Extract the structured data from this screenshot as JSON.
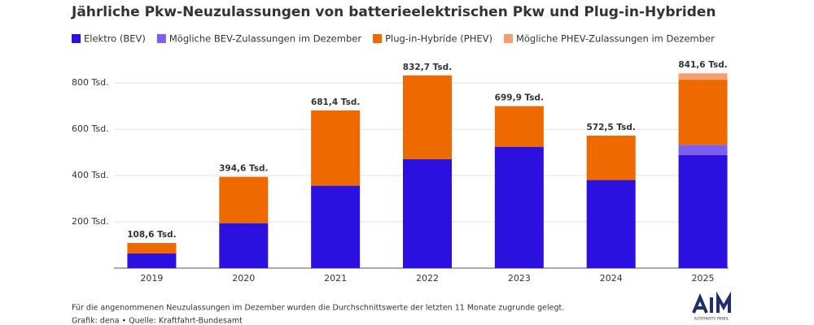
{
  "chart_data": {
    "type": "stacked_bar",
    "title": "Jährliche Pkw-Neuzulassungen von batterieelektrischen Pkw und Plug-in-Hybriden",
    "categories": [
      "2019",
      "2020",
      "2021",
      "2022",
      "2023",
      "2024",
      "2025"
    ],
    "series": [
      {
        "name": "Elektro (BEV)",
        "color": "#2b10e0",
        "values": [
          63.3,
          194.2,
          355.9,
          470.6,
          524.2,
          380.6,
          488
        ]
      },
      {
        "name": "Mögliche BEV-Zulassungen im Dezember",
        "color": "#7c5ef2",
        "values": [
          null,
          null,
          null,
          null,
          null,
          null,
          45
        ]
      },
      {
        "name": "Plug-in-Hybride (PHEV)",
        "color": "#ee6a00",
        "values": [
          45.3,
          200.4,
          325.5,
          362.1,
          175.7,
          191.9,
          281
        ]
      },
      {
        "name": "Mögliche PHEV-Zulassungen im Dezember",
        "color": "#f4a06e",
        "values": [
          null,
          null,
          null,
          null,
          null,
          null,
          27.6
        ]
      }
    ],
    "totals": {
      "values": [
        108.6,
        394.6,
        681.4,
        832.7,
        699.9,
        572.5,
        841.6
      ],
      "value_labels": [
        "108,6 Tsd.",
        "394,6 Tsd.",
        "681,4 Tsd.",
        "832,7 Tsd.",
        "699,9 Tsd.",
        "572,5 Tsd.",
        "841,6 Tsd."
      ]
    },
    "ylim": [
      0,
      860
    ],
    "yticks": [
      {
        "value": 200,
        "label": "200 Tsd."
      },
      {
        "value": 400,
        "label": "400 Tsd."
      },
      {
        "value": 600,
        "label": "600 Tsd."
      },
      {
        "value": 800,
        "label": "800 Tsd."
      }
    ],
    "grid": true,
    "note": "Für die angenommenen Neuzulassungen im Dezember wurden die Durchschnittswerte der letzten 11 Monate zugrunde gelegt.",
    "source": "Grafik: dena • Quelle: Kraftfahrt-Bundesamt",
    "logo": "ALTERNATIV MOBIL"
  }
}
